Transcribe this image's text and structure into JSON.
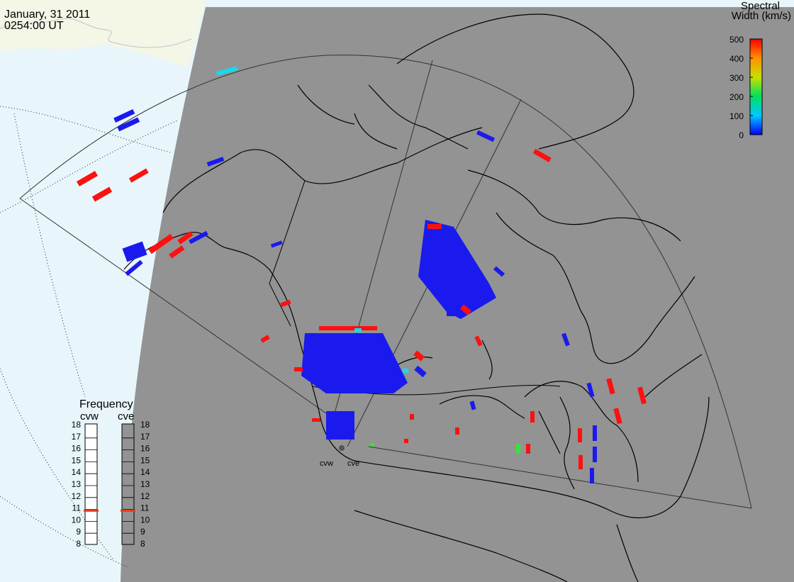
{
  "header": {
    "date": "January, 31 2011",
    "time": "0254:00 UT"
  },
  "colorbar": {
    "title_line1": "Spectral",
    "title_line2": "Width (km/s)",
    "ticks": [
      "500",
      "400",
      "300",
      "200",
      "100",
      "0"
    ],
    "range": [
      0,
      500
    ]
  },
  "frequency": {
    "title": "Frequency",
    "radars": [
      "cvw",
      "cve"
    ],
    "ticks": [
      "18",
      "17",
      "16",
      "15",
      "14",
      "13",
      "12",
      "11",
      "10",
      "9",
      "8"
    ],
    "range_mhz": [
      8,
      18
    ],
    "values_mhz": [
      10.8,
      10.8
    ]
  },
  "stations": {
    "west_label": "cvw",
    "east_label": "cve"
  },
  "colors": {
    "land_in_daylight": "#f4f6e6",
    "ocean_in_daylight": "#e8f6fb",
    "night_shading": "#939393",
    "high_width": "#ff1010",
    "low_width": "#1a1aee",
    "mid_low_width": "#18d8ee",
    "mid_width": "#3ae03a",
    "freq_marker": "#e0401a"
  }
}
